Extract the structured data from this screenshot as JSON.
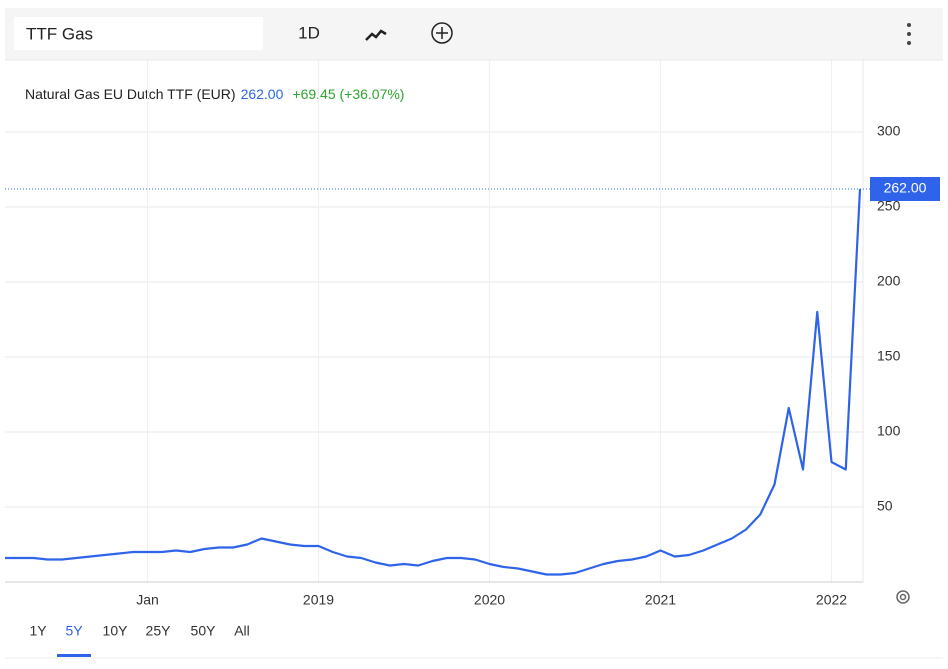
{
  "toolbar": {
    "search": "TTF Gas",
    "interval": "1D"
  },
  "chart_data": {
    "type": "line",
    "title": "Natural Gas EU Dutch TTF (EUR)",
    "last_label": "262.00",
    "change_label": "+69.45 (+36.07%)",
    "categories": [
      null,
      null,
      null,
      null,
      null,
      null,
      null,
      null,
      null,
      null,
      "Jan",
      null,
      null,
      null,
      null,
      null,
      null,
      null,
      null,
      null,
      null,
      null,
      "2019",
      null,
      null,
      null,
      null,
      null,
      null,
      null,
      null,
      null,
      null,
      null,
      "2020",
      null,
      null,
      null,
      null,
      null,
      null,
      null,
      null,
      null,
      null,
      null,
      "2021",
      null,
      null,
      null,
      null,
      null,
      null,
      null,
      null,
      null,
      null,
      null,
      "2022",
      null,
      null
    ],
    "series": [
      {
        "color": "#2f64ea",
        "values": [
          16,
          16,
          16,
          15,
          15,
          16,
          17,
          18,
          19,
          20,
          20,
          20,
          21,
          20,
          22,
          23,
          23,
          25,
          29,
          27,
          25,
          24,
          24,
          20,
          17,
          16,
          13,
          11,
          12,
          11,
          14,
          16,
          16,
          15,
          12,
          10,
          9,
          7,
          5,
          5,
          6,
          9,
          12,
          14,
          15,
          17,
          21,
          17,
          18,
          21,
          25,
          29,
          35,
          45,
          65,
          116,
          75,
          180,
          80,
          75,
          262
        ]
      }
    ],
    "ylim": [
      0,
      348
    ],
    "yticks": [
      50,
      100,
      150,
      200,
      250,
      300
    ],
    "grid": true
  },
  "range_buttons": {
    "items": [
      "1Y",
      "5Y",
      "10Y",
      "25Y",
      "50Y",
      "All"
    ],
    "selected": 1
  }
}
